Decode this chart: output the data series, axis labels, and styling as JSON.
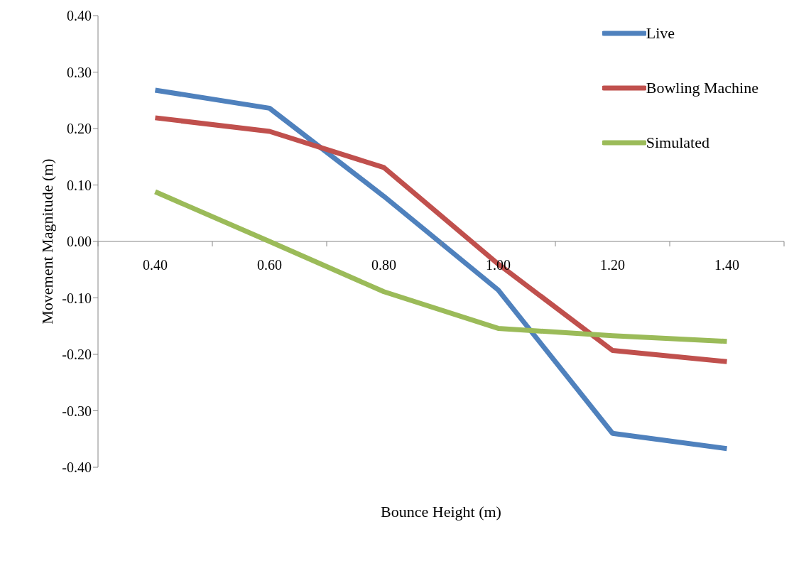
{
  "chart_data": {
    "type": "line",
    "xlabel": "Bounce Height (m)",
    "ylabel": "Movement Magnitude (m)",
    "categories": [
      "0.40",
      "0.60",
      "0.80",
      "1.00",
      "1.20",
      "1.40"
    ],
    "series": [
      {
        "name": "Live",
        "color": "#4f81bd",
        "values": [
          0.268,
          0.236,
          0.08,
          -0.086,
          -0.34,
          -0.367
        ]
      },
      {
        "name": "Bowling Machine",
        "color": "#c0504d",
        "values": [
          0.219,
          0.195,
          0.131,
          -0.04,
          -0.193,
          -0.213
        ]
      },
      {
        "name": "Simulated",
        "color": "#9bbb59",
        "values": [
          0.088,
          0.0,
          -0.089,
          -0.154,
          -0.167,
          -0.177
        ]
      }
    ],
    "ylim": [
      -0.4,
      0.4
    ],
    "yticks": [
      {
        "value": -0.4,
        "label": "-0.40"
      },
      {
        "value": -0.3,
        "label": "-0.30"
      },
      {
        "value": -0.2,
        "label": "-0.20"
      },
      {
        "value": -0.1,
        "label": "-0.10"
      },
      {
        "value": 0,
        "label": "0.00"
      },
      {
        "value": 0.1,
        "label": "0.10"
      },
      {
        "value": 0.2,
        "label": "0.20"
      },
      {
        "value": 0.3,
        "label": "0.30"
      },
      {
        "value": 0.4,
        "label": "0.40"
      }
    ],
    "grid": false,
    "legend": "top right",
    "marker": "none",
    "line_style": "solid"
  }
}
